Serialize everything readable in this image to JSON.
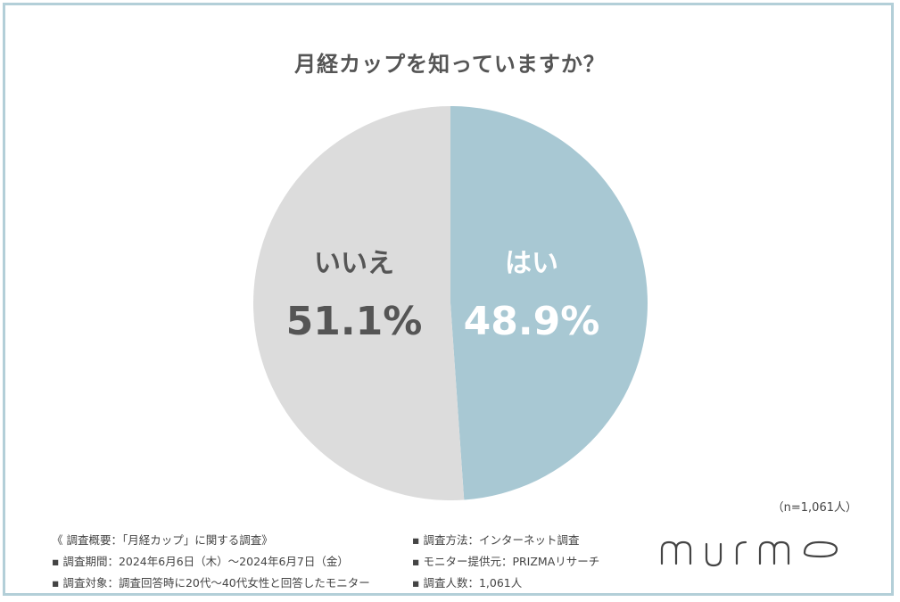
{
  "chart_data": {
    "type": "pie",
    "title": "月経カップを知っていますか？",
    "slices": [
      {
        "label": "はい",
        "value": 48.9,
        "display": "48.9%",
        "color": "#a8c8d3",
        "text_color": "#ffffff"
      },
      {
        "label": "いいえ",
        "value": 51.1,
        "display": "51.1%",
        "color": "#dcdcdc",
        "text_color": "#555555"
      }
    ],
    "start": "top",
    "direction": "clockwise",
    "sample": "（n=1,061人）"
  },
  "notes": {
    "left": [
      "《 調査概要：「月経カップ」に関する調査》",
      "▪ 調査期間：2024年6月6日（木）～2024年6月7日（金）",
      "▪ 調査対象：調査回答時に20代～40代女性と回答したモニター"
    ],
    "right": [
      "▪ 調査方法：インターネット調査",
      "▪ モニター提供元：PRIZMAリサーチ",
      "▪ 調査人数：1,061人"
    ]
  },
  "logo": "murmo",
  "colors": {
    "border": "#b3cfd8"
  }
}
